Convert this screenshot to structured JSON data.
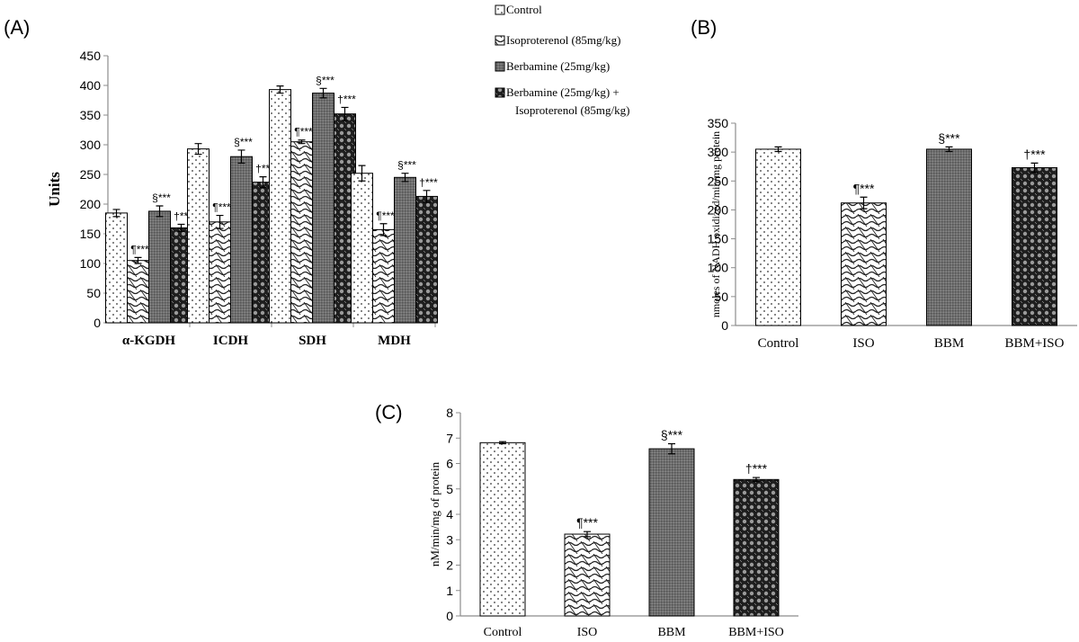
{
  "legend": {
    "items": [
      {
        "label": "Control",
        "pattern": "pat-dots"
      },
      {
        "label": "Isoproterenol (85mg/kg)",
        "pattern": "pat-wave"
      },
      {
        "label": "Berbamine (25mg/kg)",
        "pattern": "pat-grid"
      },
      {
        "label": "Berbamine (25mg/kg) +",
        "label2": "Isoproterenol (85mg/kg)",
        "pattern": "pat-circ"
      }
    ]
  },
  "colors": {
    "axis": "#8c8c8c",
    "bar_outline": "#000000",
    "text": "#000000"
  },
  "chart_data": [
    {
      "panel": "(A)",
      "type": "bar",
      "ylabel": "Units",
      "ylim": [
        0,
        450
      ],
      "yticks": [
        0,
        50,
        100,
        150,
        200,
        250,
        300,
        350,
        400,
        450
      ],
      "categories": [
        "α-KGDH",
        "ICDH",
        "SDH",
        "MDH"
      ],
      "series": [
        {
          "values": [
            185,
            293,
            393,
            252
          ],
          "errors": [
            6,
            9,
            6,
            13
          ]
        },
        {
          "values": [
            105,
            170,
            305,
            157
          ],
          "errors": [
            5,
            11,
            3,
            10
          ]
        },
        {
          "values": [
            188,
            280,
            387,
            245
          ],
          "errors": [
            9,
            11,
            8,
            7
          ]
        },
        {
          "values": [
            160,
            237,
            352,
            213
          ],
          "errors": [
            6,
            9,
            11,
            10
          ]
        }
      ],
      "annotations": [
        [
          "",
          "¶***",
          "§***",
          "†***"
        ],
        [
          "",
          "¶***",
          "§***",
          "†***"
        ],
        [
          "",
          "¶***",
          "§***",
          "†***"
        ],
        [
          "",
          "¶***",
          "§***",
          "†***"
        ]
      ]
    },
    {
      "panel": "(B)",
      "type": "bar",
      "ylabel": "nmoles of NADH oxidized/min/mg protein",
      "ylim": [
        0,
        350
      ],
      "yticks": [
        0,
        50,
        100,
        150,
        200,
        250,
        300,
        350
      ],
      "categories": [
        "Control",
        "ISO",
        "BBM",
        "BBM+ISO"
      ],
      "values": [
        305,
        212,
        305,
        273
      ],
      "errors": [
        4,
        10,
        4,
        8
      ],
      "annotations": [
        "",
        "¶***",
        "§***",
        "†***"
      ]
    },
    {
      "panel": "(C)",
      "type": "bar",
      "ylabel": "nM/min/mg of protein",
      "ylim": [
        0,
        8
      ],
      "yticks": [
        0,
        1,
        2,
        3,
        4,
        5,
        6,
        7,
        8
      ],
      "categories": [
        "Control",
        "ISO",
        "BBM",
        "BBM+ISO"
      ],
      "values": [
        6.82,
        3.22,
        6.58,
        5.37
      ],
      "errors": [
        0.04,
        0.1,
        0.2,
        0.08
      ],
      "annotations": [
        "",
        "¶***",
        "§***",
        "†***"
      ]
    }
  ]
}
